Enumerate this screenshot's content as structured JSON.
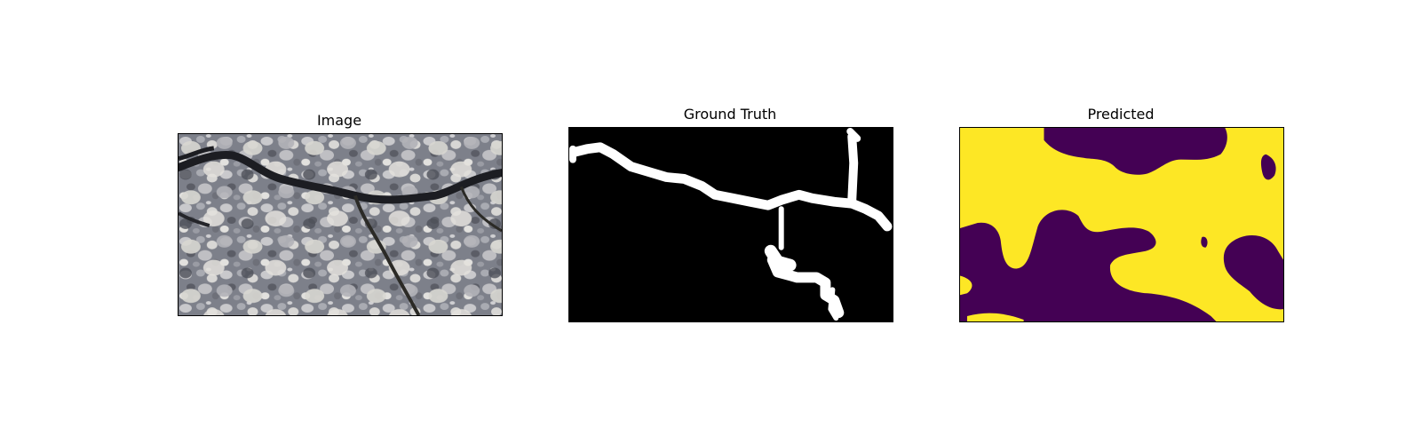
{
  "figure": {
    "panels": [
      {
        "title": "Image",
        "content": "pavement-crack-photo"
      },
      {
        "title": "Ground Truth",
        "content": "binary-crack-mask"
      },
      {
        "title": "Predicted",
        "content": "predicted-segmentation-mask"
      }
    ]
  },
  "colors": {
    "background": "#ffffff",
    "frame": "#000000",
    "gt_background": "#000000",
    "gt_crack": "#ffffff",
    "pred_class_0": "#440154",
    "pred_class_1": "#fde725",
    "asphalt_base": "#8a8c96",
    "crack_dark": "#1c1d22"
  }
}
